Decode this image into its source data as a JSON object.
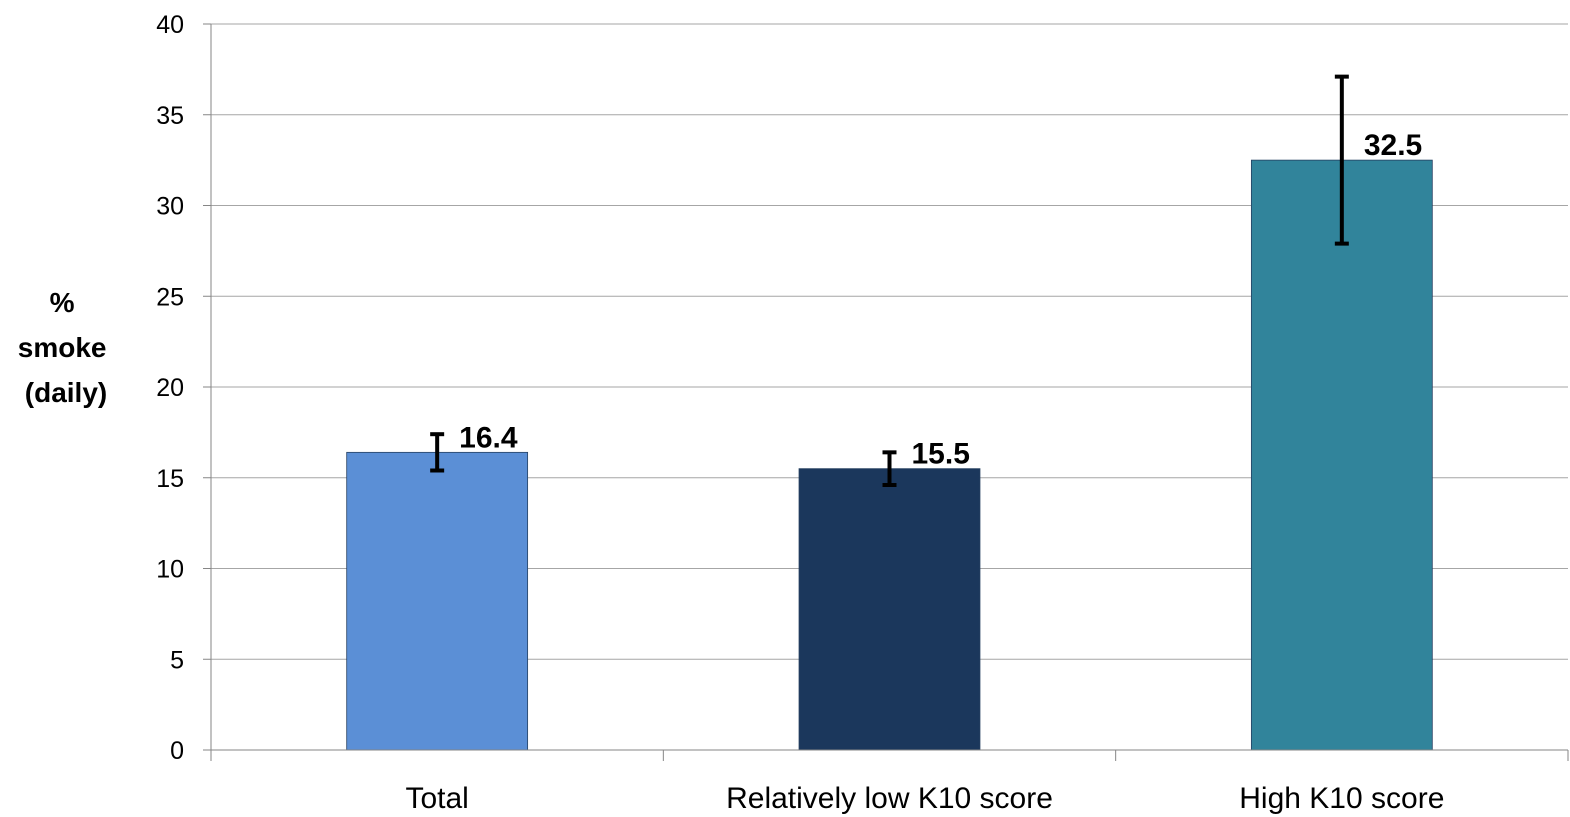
{
  "chart_data": {
    "type": "bar",
    "title": "",
    "xlabel": "",
    "ylabel_lines": [
      "%",
      "smoke",
      "(daily)"
    ],
    "ylim": [
      0,
      40
    ],
    "yticks": [
      0,
      5,
      10,
      15,
      20,
      25,
      30,
      35,
      40
    ],
    "ytick_labels": [
      "0",
      "5",
      "10",
      "15",
      "20",
      "25",
      "30",
      "35",
      "40"
    ],
    "grid": true,
    "legend": "none",
    "categories": [
      "Total",
      "Relatively low K10 score",
      "High K10 score"
    ],
    "values": [
      16.4,
      15.5,
      32.5
    ],
    "value_labels": [
      "16.4",
      "15.5",
      "32.5"
    ],
    "error_low": [
      15.4,
      14.6,
      27.9
    ],
    "error_high": [
      17.4,
      16.4,
      37.1
    ],
    "colors": [
      "#5B8FD6",
      "#1B375C",
      "#31849B"
    ],
    "gridline_color": "#A6A6A6",
    "axis_color": "#868686"
  }
}
